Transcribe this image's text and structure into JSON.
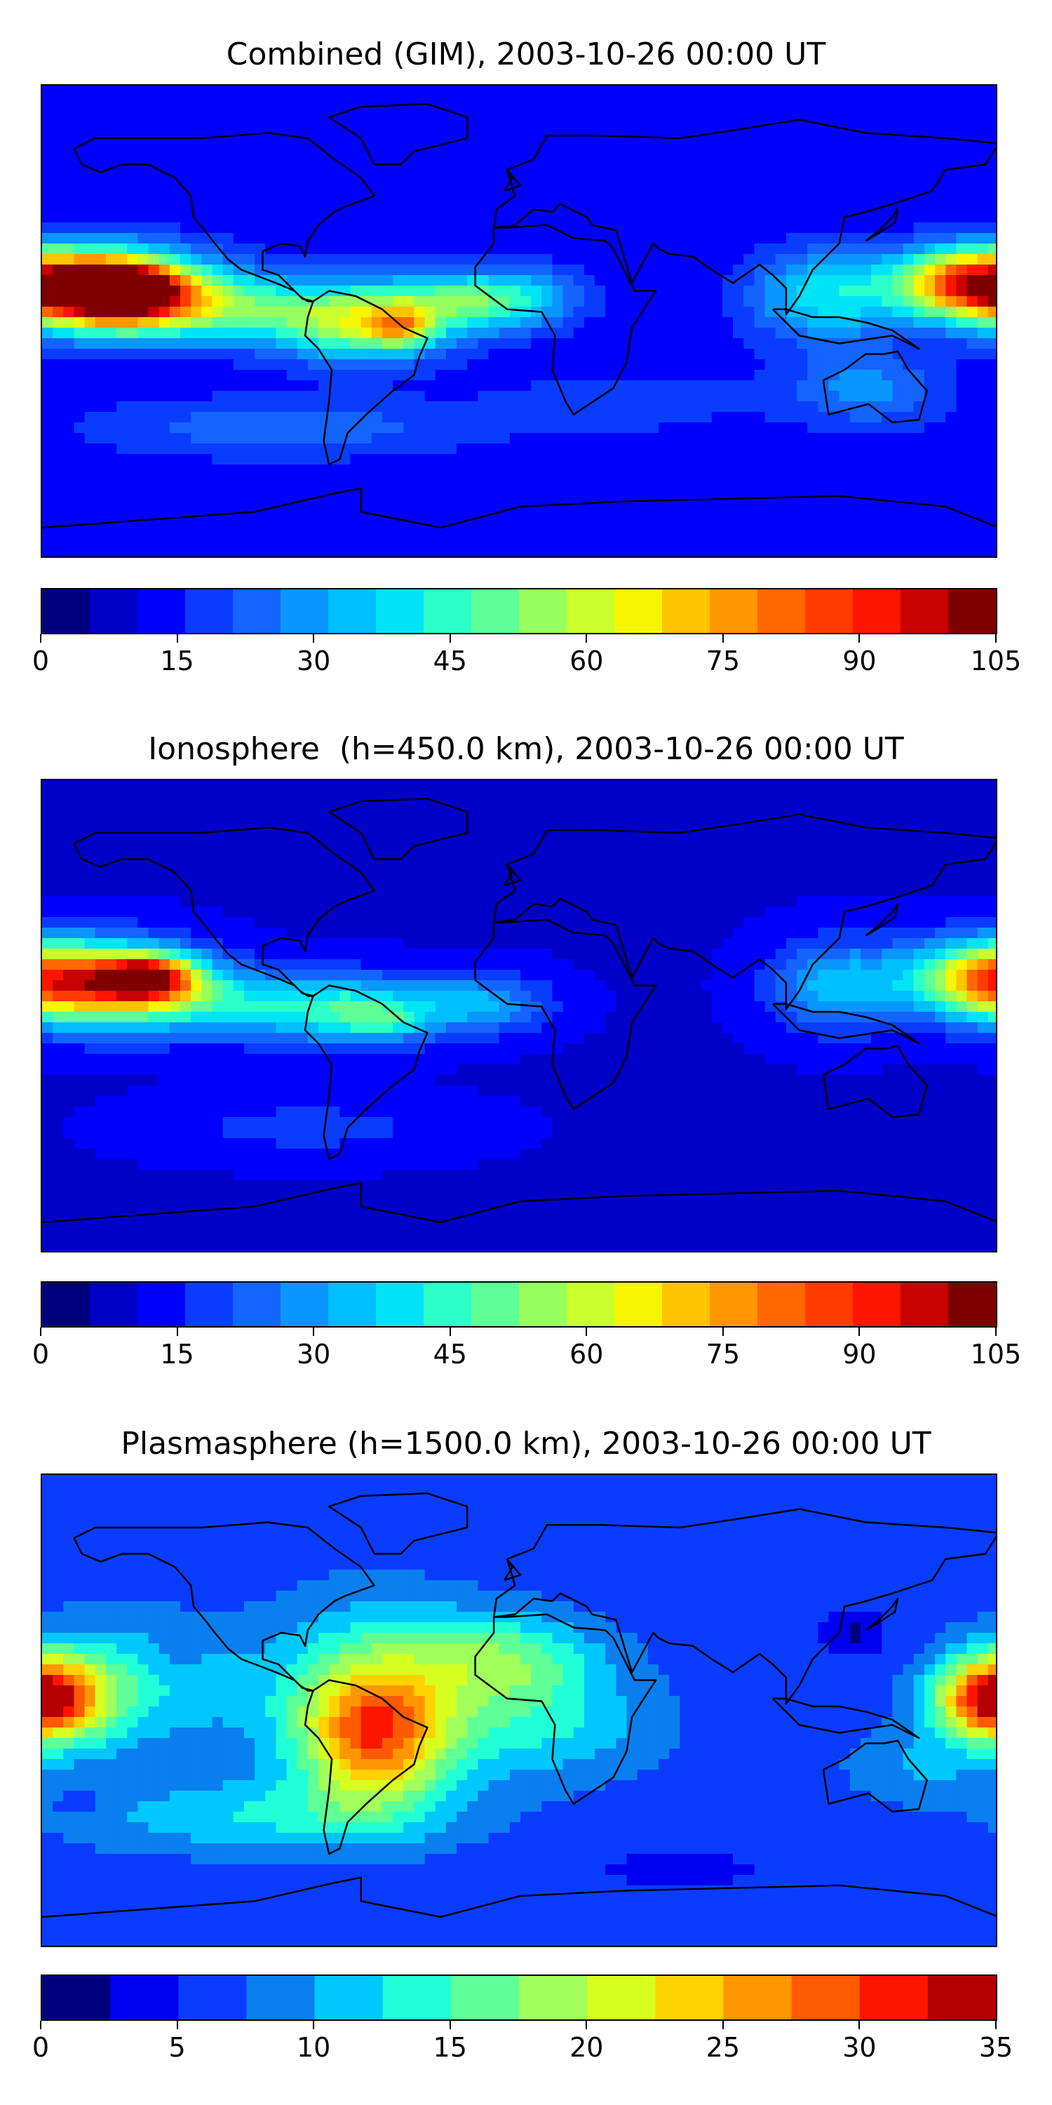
{
  "chart_data": [
    {
      "type": "heatmap",
      "title": "Combined (GIM), 2003-10-26 00:00 UT",
      "colorbar": {
        "min": 0,
        "max": 105,
        "step": 5,
        "ticks": [
          "0",
          "15",
          "30",
          "45",
          "60",
          "75",
          "90",
          "105"
        ]
      },
      "background_level": 12,
      "blobs": [
        {
          "lon": -155,
          "lat": 12,
          "v": 78,
          "sx": 28,
          "sy": 11
        },
        {
          "lon": -150,
          "lat": 12,
          "v": 85,
          "sx": 14,
          "sy": 7
        },
        {
          "lon": -110,
          "lat": 5,
          "v": 40,
          "sx": 30,
          "sy": 9
        },
        {
          "lon": -60,
          "lat": 0,
          "v": 55,
          "sx": 22,
          "sy": 10
        },
        {
          "lon": -45,
          "lat": -2,
          "v": 40,
          "sx": 8,
          "sy": 5
        },
        {
          "lon": -20,
          "lat": 8,
          "v": 45,
          "sx": 20,
          "sy": 8
        },
        {
          "lon": 5,
          "lat": 10,
          "v": 25,
          "sx": 15,
          "sy": 8
        },
        {
          "lon": 115,
          "lat": 10,
          "v": 40,
          "sx": 20,
          "sy": 12
        },
        {
          "lon": 170,
          "lat": 15,
          "v": 75,
          "sx": 20,
          "sy": 9
        },
        {
          "lon": 130,
          "lat": -25,
          "v": 28,
          "sx": 20,
          "sy": 10
        },
        {
          "lon": -90,
          "lat": -40,
          "v": 25,
          "sx": 50,
          "sy": 8
        },
        {
          "lon": 40,
          "lat": -30,
          "v": 18,
          "sx": 40,
          "sy": 10
        }
      ]
    },
    {
      "type": "heatmap",
      "title": "Ionosphere  (h=450.0 km), 2003-10-26 00:00 UT",
      "colorbar": {
        "min": 0,
        "max": 105,
        "step": 5,
        "ticks": [
          "0",
          "15",
          "30",
          "45",
          "60",
          "75",
          "90",
          "105"
        ]
      },
      "background_level": 10,
      "blobs": [
        {
          "lon": -155,
          "lat": 12,
          "v": 65,
          "sx": 25,
          "sy": 11
        },
        {
          "lon": -140,
          "lat": 15,
          "v": 72,
          "sx": 12,
          "sy": 6
        },
        {
          "lon": -105,
          "lat": 5,
          "v": 35,
          "sx": 25,
          "sy": 9
        },
        {
          "lon": -60,
          "lat": 2,
          "v": 42,
          "sx": 20,
          "sy": 9
        },
        {
          "lon": -50,
          "lat": -2,
          "v": 20,
          "sx": 8,
          "sy": 4
        },
        {
          "lon": -15,
          "lat": 5,
          "v": 32,
          "sx": 18,
          "sy": 8
        },
        {
          "lon": 120,
          "lat": 12,
          "v": 35,
          "sx": 18,
          "sy": 12
        },
        {
          "lon": 175,
          "lat": 15,
          "v": 62,
          "sx": 20,
          "sy": 10
        },
        {
          "lon": -80,
          "lat": -42,
          "v": 18,
          "sx": 40,
          "sy": 8
        }
      ]
    },
    {
      "type": "heatmap",
      "title": "Plasmasphere (h=1500.0 km), 2003-10-26 00:00 UT",
      "colorbar": {
        "min": 0,
        "max": 35,
        "step": 2.5,
        "ticks": [
          "0",
          "5",
          "10",
          "15",
          "20",
          "25",
          "30",
          "35"
        ]
      },
      "background_level": 6,
      "blobs": [
        {
          "lon": -175,
          "lat": 5,
          "v": 20,
          "sx": 15,
          "sy": 12
        },
        {
          "lon": -150,
          "lat": 10,
          "v": 13,
          "sx": 30,
          "sy": 18
        },
        {
          "lon": -55,
          "lat": -10,
          "v": 22,
          "sx": 18,
          "sy": 18
        },
        {
          "lon": -55,
          "lat": 5,
          "v": 16,
          "sx": 30,
          "sy": 25
        },
        {
          "lon": -5,
          "lat": 20,
          "v": 15,
          "sx": 25,
          "sy": 12
        },
        {
          "lon": 10,
          "lat": -5,
          "v": 12,
          "sx": 30,
          "sy": 15
        },
        {
          "lon": 175,
          "lat": 5,
          "v": 22,
          "sx": 14,
          "sy": 10
        },
        {
          "lon": 150,
          "lat": -20,
          "v": 10,
          "sx": 20,
          "sy": 10
        },
        {
          "lon": -100,
          "lat": -40,
          "v": 12,
          "sx": 50,
          "sy": 10
        },
        {
          "lon": 125,
          "lat": 30,
          "v": 2,
          "sx": 8,
          "sy": 6
        },
        {
          "lon": -130,
          "lat": 20,
          "v": 4,
          "sx": 6,
          "sy": 5
        },
        {
          "lon": -165,
          "lat": -35,
          "v": 4,
          "sx": 8,
          "sy": 4
        },
        {
          "lon": 60,
          "lat": -60,
          "v": 3,
          "sx": 20,
          "sy": 4
        }
      ]
    }
  ],
  "colormap": [
    "#00007f",
    "#0000c8",
    "#0000ff",
    "#0a3cff",
    "#1464ff",
    "#0a96ff",
    "#00bfff",
    "#00e5f6",
    "#2cffc9",
    "#5dff96",
    "#96ff5d",
    "#c9ff2c",
    "#f6f600",
    "#ffc400",
    "#ff9600",
    "#ff6800",
    "#ff3c00",
    "#ff1400",
    "#c80000",
    "#7f0000"
  ],
  "colormap_plasma": [
    "#00007f",
    "#0000f0",
    "#0a3cff",
    "#0a7ff0",
    "#00c8ff",
    "#20ffd6",
    "#5dff96",
    "#a0ff5a",
    "#d6ff20",
    "#ffd200",
    "#ff9600",
    "#ff5a00",
    "#ff1400",
    "#b40000"
  ]
}
